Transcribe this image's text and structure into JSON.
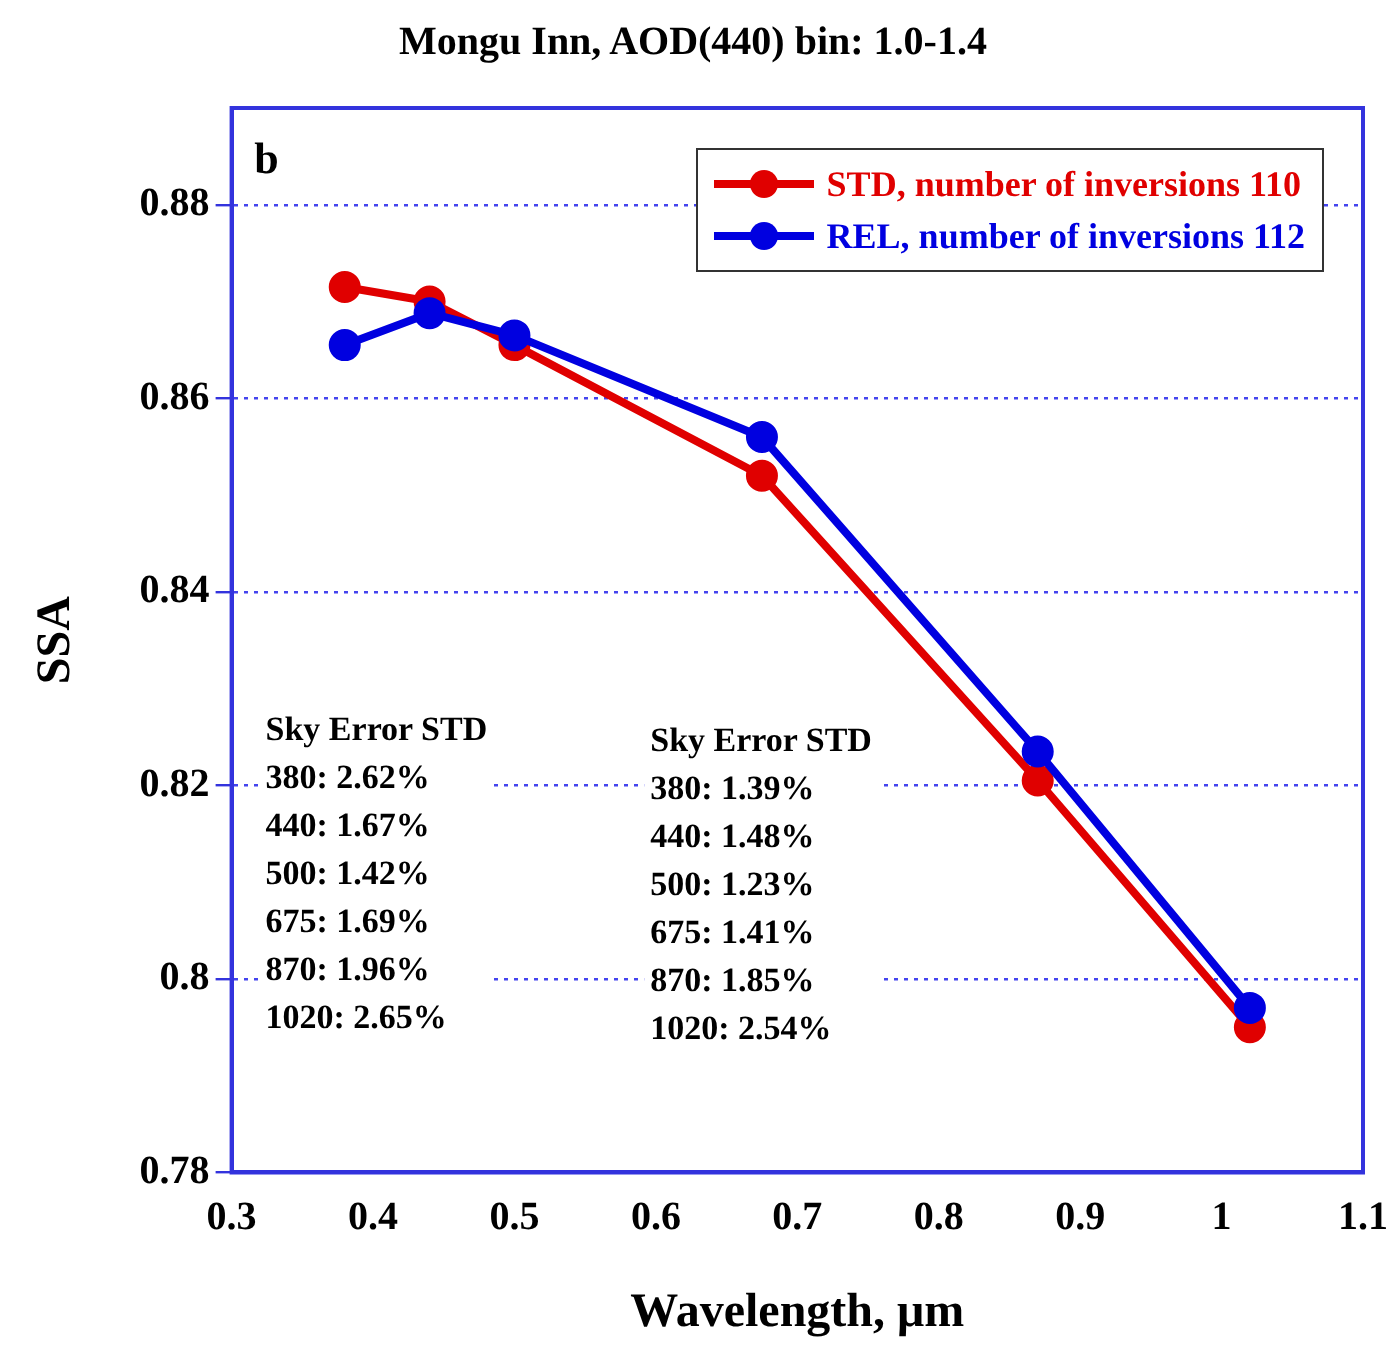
{
  "chart_data": {
    "type": "line",
    "title": "Mongu Inn, AOD(440) bin: 1.0-1.4",
    "xlabel": "Wavelength, μm",
    "ylabel": "SSA",
    "x": [
      0.38,
      0.44,
      0.5,
      0.675,
      0.87,
      1.02
    ],
    "series": [
      {
        "name": "STD, number of inversions 110",
        "color": "#e00000",
        "values": [
          0.8715,
          0.87,
          0.8655,
          0.852,
          0.8205,
          0.795
        ]
      },
      {
        "name": "REL, number of inversions 112",
        "color": "#0000e0",
        "values": [
          0.8655,
          0.8688,
          0.8665,
          0.856,
          0.8235,
          0.797
        ]
      }
    ],
    "xlim": [
      0.3,
      1.1
    ],
    "xticks": [
      0.3,
      0.4,
      0.5,
      0.6,
      0.7,
      0.8,
      0.9,
      1,
      1.1
    ],
    "ylim": [
      0.78,
      0.89
    ],
    "yticks": [
      0.78,
      0.8,
      0.82,
      0.84,
      0.86,
      0.88
    ],
    "grid": "y",
    "legend": "top right",
    "marker": "circle",
    "line_style": "solid",
    "annotations": [
      "b",
      "Sky Error STD\n380: 2.62%\n440: 1.67%\n500: 1.42%\n675: 1.69%\n870: 1.96%\n1020: 2.65%",
      "Sky Error STD\n380: 1.39%\n440: 1.48%\n500: 1.23%\n675: 1.41%\n870: 1.85%\n1020: 2.54%"
    ]
  }
}
